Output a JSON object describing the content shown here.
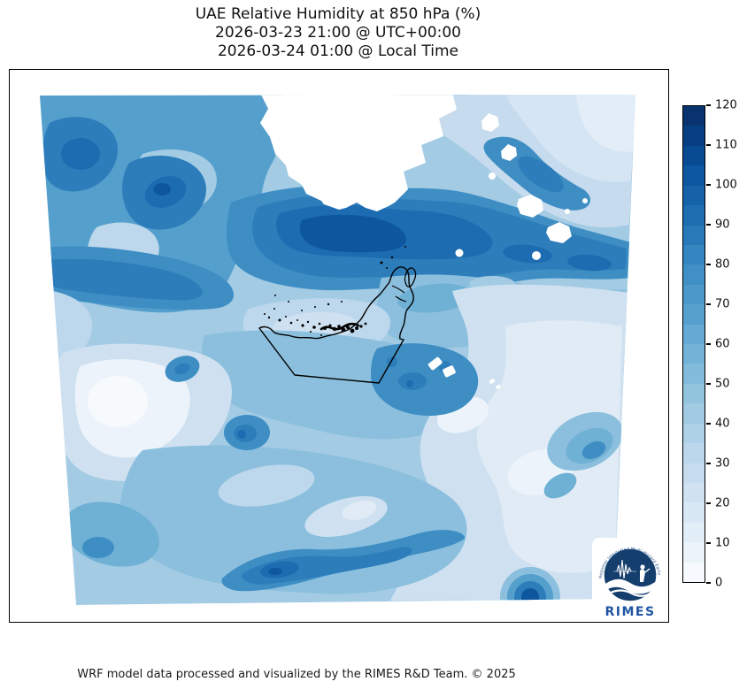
{
  "title": {
    "line1": "UAE Relative Humidity at 850 hPa (%)",
    "line2": "2026-03-23 21:00 @ UTC+00:00",
    "line3": "2026-03-24 01:00 @ Local Time"
  },
  "footer": "WRF model data processed and visualized by the RIMES R&D Team. © 2025",
  "logo": {
    "name": "RIMES",
    "ring_text": "Regional Integrated Multi-Hazard Early Warning System"
  },
  "chart_data": {
    "type": "heatmap",
    "subtype": "filled contour map (WRF model forecast)",
    "title": "UAE Relative Humidity at 850 hPa (%)",
    "valid_time_utc": "2026-03-23 21:00 @ UTC+00:00",
    "valid_time_local": "2026-03-24 01:00 @ Local Time",
    "variable": "Relative Humidity",
    "pressure_level": "850 hPa",
    "units": "%",
    "region": "UAE and surrounding Arabian Gulf region",
    "colormap": "Blues",
    "overlay": "UAE national border, coastline and islands drawn as black outline",
    "grid": false,
    "legend_position": "right",
    "colorbar": {
      "orientation": "vertical",
      "min": 0,
      "max": 120,
      "tick_step": 10,
      "ticks_top_to_bottom": [
        120,
        110,
        100,
        90,
        80,
        70,
        60,
        50,
        40,
        30,
        20,
        10,
        0
      ],
      "contour_level_step": 5,
      "segment_colors_low_to_high": [
        "#f6fafe",
        "#ecf4fb",
        "#e2eef8",
        "#d9e8f5",
        "#d0e2f2",
        "#c7ddef",
        "#bcd7ec",
        "#aed1e7",
        "#a0cbe2",
        "#92c4de",
        "#83bcdb",
        "#74b3d8",
        "#65aad4",
        "#57a0ce",
        "#4b98c9",
        "#4090c5",
        "#3585c0",
        "#2979b9",
        "#1e6db1",
        "#1562a9",
        "#0d57a1",
        "#084b93",
        "#083f82",
        "#08336f"
      ]
    },
    "visible_features": [
      "dark high-humidity band (90-105%) over the Gulf just north of the UAE coast",
      "white (below-scale, <5%) dry pocket at top-centre of the domain",
      "light low-humidity (10-35%) zones in the bottom-left, bottom-right and top-right of the domain",
      "small dark humid bullseye on the bottom edge of the domain",
      "curvilinear (trapezoidal) WRF model domain boundary"
    ]
  }
}
